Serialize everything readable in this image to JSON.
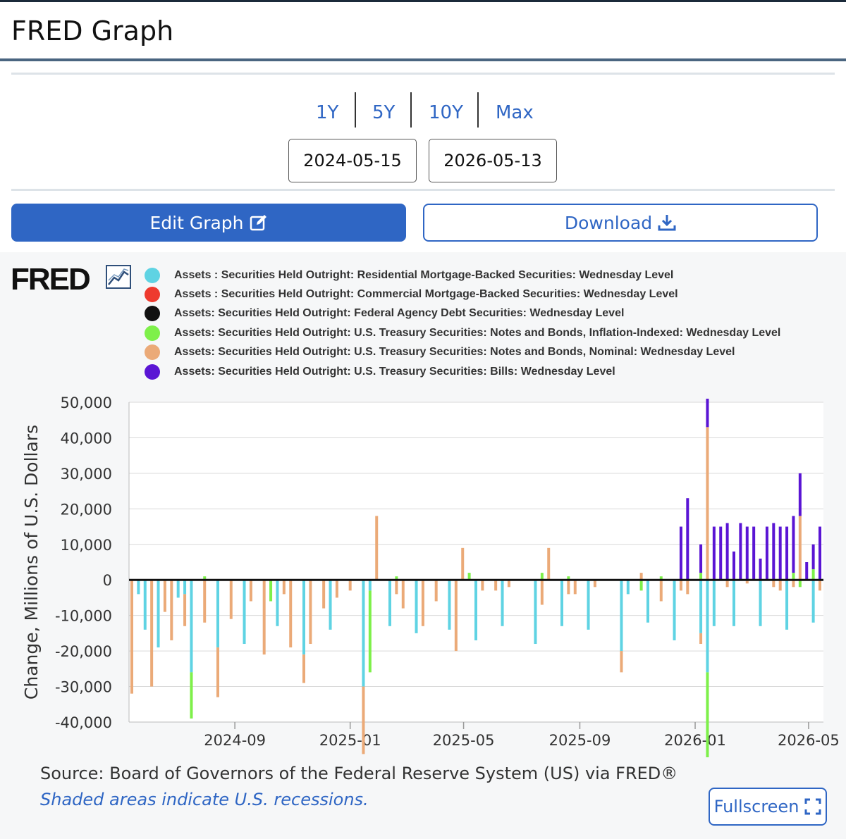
{
  "header": {
    "title": "FRED Graph"
  },
  "range_buttons": [
    "1Y",
    "5Y",
    "10Y",
    "Max"
  ],
  "dates": {
    "start": "2024-05-15",
    "end": "2026-05-13"
  },
  "actions": {
    "edit": "Edit Graph",
    "download": "Download",
    "fullscreen": "Fullscreen"
  },
  "logo": {
    "text": "FRED"
  },
  "footer": {
    "source": "Source: Board of Governors of the Federal Reserve System (US) via FRED®",
    "note": "Shaded areas indicate U.S. recessions."
  },
  "chart_data": {
    "type": "bar",
    "stacked": true,
    "ylabel": "Change, Millions of U.S. Dollars",
    "ylim": [
      -40000,
      50000
    ],
    "yticks": [
      50000,
      40000,
      30000,
      20000,
      10000,
      0,
      -10000,
      -20000,
      -30000,
      -40000
    ],
    "ytick_labels": [
      "50,000",
      "40,000",
      "30,000",
      "20,000",
      "10,000",
      "0",
      "-10,000",
      "-20,000",
      "-30,000",
      "-40,000"
    ],
    "xlim": [
      "2024-05-15",
      "2026-05-13"
    ],
    "xticks": [
      "2024-09-01",
      "2025-01-01",
      "2025-05-01",
      "2025-09-01",
      "2026-01-01",
      "2026-05-01"
    ],
    "xtick_labels": [
      "2024-09",
      "2025-01",
      "2025-05",
      "2025-09",
      "2026-01",
      "2026-05"
    ],
    "grid": true,
    "legend_position": "top",
    "series": [
      {
        "name": "Assets : Securities Held Outright: Residential Mortgage-Backed Securities: Wednesday Level",
        "color": "#5fd3e3",
        "points": [
          [
            "2024-05-22",
            -4000
          ],
          [
            "2024-05-29",
            -14000
          ],
          [
            "2024-06-12",
            -19000
          ],
          [
            "2024-07-03",
            -5000
          ],
          [
            "2024-07-10",
            -4000
          ],
          [
            "2024-07-17",
            -26000
          ],
          [
            "2024-08-14",
            -19000
          ],
          [
            "2024-09-11",
            -18000
          ],
          [
            "2024-10-16",
            -13000
          ],
          [
            "2024-11-13",
            -21000
          ],
          [
            "2024-12-11",
            -14000
          ],
          [
            "2025-01-15",
            -30000
          ],
          [
            "2025-01-22",
            -3000
          ],
          [
            "2025-02-12",
            -13000
          ],
          [
            "2025-03-12",
            -15000
          ],
          [
            "2025-04-16",
            -14000
          ],
          [
            "2025-05-14",
            -17000
          ],
          [
            "2025-06-11",
            -13000
          ],
          [
            "2025-07-16",
            -18000
          ],
          [
            "2025-08-13",
            -13000
          ],
          [
            "2025-09-10",
            -14000
          ],
          [
            "2025-10-15",
            -20000
          ],
          [
            "2025-10-22",
            -4000
          ],
          [
            "2025-11-12",
            -12000
          ],
          [
            "2025-12-10",
            -17000
          ],
          [
            "2026-01-07",
            -15000
          ],
          [
            "2026-01-14",
            -26000
          ],
          [
            "2026-01-21",
            -13000
          ],
          [
            "2026-02-11",
            -13000
          ],
          [
            "2026-03-11",
            -13000
          ],
          [
            "2026-04-08",
            -14000
          ],
          [
            "2026-05-06",
            -12000
          ]
        ]
      },
      {
        "name": "Assets : Securities Held Outright: Commercial Mortgage-Backed Securities: Wednesday Level",
        "color": "#ee3a2e",
        "points": []
      },
      {
        "name": "Assets: Securities Held Outright: Federal Agency Debt Securities: Wednesday Level",
        "color": "#111111",
        "points": []
      },
      {
        "name": "Assets: Securities Held Outright: U.S. Treasury Securities: Notes and Bonds, Inflation-Indexed: Wednesday Level",
        "color": "#7ef04a",
        "points": [
          [
            "2024-07-17",
            -13000
          ],
          [
            "2024-07-31",
            1000
          ],
          [
            "2024-10-09",
            -6000
          ],
          [
            "2025-01-22",
            -23000
          ],
          [
            "2025-02-19",
            1000
          ],
          [
            "2025-05-07",
            2000
          ],
          [
            "2025-07-23",
            2000
          ],
          [
            "2025-08-20",
            1000
          ],
          [
            "2025-11-05",
            -3000
          ],
          [
            "2025-11-26",
            1000
          ],
          [
            "2026-01-07",
            2000
          ],
          [
            "2026-01-14",
            -24000
          ],
          [
            "2026-04-15",
            2000
          ],
          [
            "2026-04-22",
            -2000
          ],
          [
            "2026-05-06",
            3000
          ]
        ]
      },
      {
        "name": "Assets: Securities Held Outright: U.S. Treasury Securities: Notes and Bonds, Nominal: Wednesday Level",
        "color": "#ebaa78",
        "points": [
          [
            "2024-05-15",
            -32000
          ],
          [
            "2024-06-05",
            -30000
          ],
          [
            "2024-06-19",
            -9000
          ],
          [
            "2024-06-26",
            -17000
          ],
          [
            "2024-07-10",
            -9000
          ],
          [
            "2024-07-31",
            -12000
          ],
          [
            "2024-08-14",
            -14000
          ],
          [
            "2024-08-28",
            -11000
          ],
          [
            "2024-09-18",
            -6000
          ],
          [
            "2024-10-02",
            -21000
          ],
          [
            "2024-10-23",
            -4000
          ],
          [
            "2024-10-30",
            -19000
          ],
          [
            "2024-11-13",
            -8000
          ],
          [
            "2024-11-20",
            -18000
          ],
          [
            "2024-12-04",
            -8000
          ],
          [
            "2024-12-18",
            -5000
          ],
          [
            "2025-01-01",
            -3000
          ],
          [
            "2025-01-15",
            -19000
          ],
          [
            "2025-01-29",
            18000
          ],
          [
            "2025-02-19",
            -4000
          ],
          [
            "2025-02-26",
            -8000
          ],
          [
            "2025-03-19",
            -13000
          ],
          [
            "2025-04-02",
            -6000
          ],
          [
            "2025-04-23",
            -20000
          ],
          [
            "2025-04-30",
            9000
          ],
          [
            "2025-05-21",
            -3000
          ],
          [
            "2025-06-04",
            -3000
          ],
          [
            "2025-06-18",
            -2000
          ],
          [
            "2025-07-23",
            -7000
          ],
          [
            "2025-07-30",
            9000
          ],
          [
            "2025-08-20",
            -4000
          ],
          [
            "2025-08-27",
            -4000
          ],
          [
            "2025-09-17",
            -2000
          ],
          [
            "2025-10-15",
            -6000
          ],
          [
            "2025-11-05",
            2000
          ],
          [
            "2025-11-26",
            -6000
          ],
          [
            "2025-12-17",
            -3000
          ],
          [
            "2025-12-24",
            -4000
          ],
          [
            "2026-01-07",
            -3000
          ],
          [
            "2026-01-14",
            43000
          ],
          [
            "2026-02-04",
            -2000
          ],
          [
            "2026-02-25",
            -1000
          ],
          [
            "2026-03-25",
            -2000
          ],
          [
            "2026-04-01",
            -3000
          ],
          [
            "2026-04-15",
            -2000
          ],
          [
            "2026-04-22",
            18000
          ],
          [
            "2026-05-13",
            -3000
          ]
        ]
      },
      {
        "name": "Assets: Securities Held Outright: U.S. Treasury Securities: Bills: Wednesday Level",
        "color": "#5a15d4",
        "points": [
          [
            "2025-12-17",
            15000
          ],
          [
            "2025-12-24",
            23000
          ],
          [
            "2026-01-07",
            8000
          ],
          [
            "2026-01-14",
            8000
          ],
          [
            "2026-01-21",
            15000
          ],
          [
            "2026-01-28",
            15000
          ],
          [
            "2026-02-04",
            16000
          ],
          [
            "2026-02-11",
            8000
          ],
          [
            "2026-02-18",
            16000
          ],
          [
            "2026-02-25",
            15000
          ],
          [
            "2026-03-04",
            15000
          ],
          [
            "2026-03-11",
            6000
          ],
          [
            "2026-03-18",
            15000
          ],
          [
            "2026-03-25",
            16000
          ],
          [
            "2026-04-01",
            15000
          ],
          [
            "2026-04-08",
            15000
          ],
          [
            "2026-04-15",
            16000
          ],
          [
            "2026-04-22",
            12000
          ],
          [
            "2026-04-29",
            5000
          ],
          [
            "2026-05-06",
            7000
          ],
          [
            "2026-05-13",
            15000
          ]
        ]
      }
    ]
  }
}
